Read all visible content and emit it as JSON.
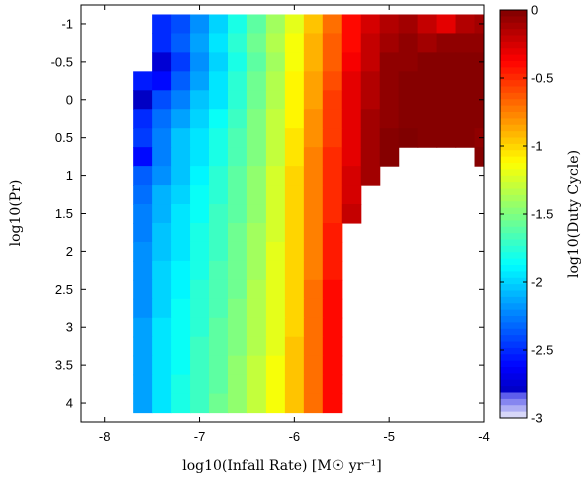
{
  "chart_data": {
    "type": "heatmap",
    "title": "",
    "xlabel": "log10(Infall Rate) [M☉ yr⁻¹]",
    "ylabel": "log10(Pr)",
    "colorbar_label": "log10(Duty Cycle)",
    "xlim": [
      -8.25,
      -4.0
    ],
    "ylim": [
      -1.25,
      4.25
    ],
    "y_inverted": true,
    "x_ticks": [
      "-8",
      "-7",
      "-6",
      "-5",
      "-4"
    ],
    "x_tick_values": [
      -8,
      -7,
      -6,
      -5,
      -4
    ],
    "y_ticks": [
      "-1",
      "-0.5",
      "0",
      "0.5",
      "1",
      "1.5",
      "2",
      "2.5",
      "3",
      "3.5",
      "4"
    ],
    "y_tick_values": [
      -1,
      -0.5,
      0,
      0.5,
      1,
      1.5,
      2,
      2.5,
      3,
      3.5,
      4
    ],
    "colorbar_ticks": [
      "0",
      "-0.5",
      "-1",
      "-1.5",
      "-2",
      "-2.5",
      "-3"
    ],
    "colorbar_tick_values": [
      0,
      -0.5,
      -1,
      -1.5,
      -2,
      -2.5,
      -3
    ],
    "color_range": [
      -3,
      0
    ],
    "colormap": "jet",
    "x_edges": [
      -7.7,
      -7.5,
      -7.3,
      -7.1,
      -6.9,
      -6.7,
      -6.5,
      -6.3,
      -6.1,
      -5.9,
      -5.7,
      -5.5,
      -5.3,
      -5.1,
      -4.9,
      -4.7,
      -4.5,
      -4.3,
      -4.1,
      -3.9
    ],
    "y_centers": [
      -1.0,
      -0.75,
      -0.5,
      -0.25,
      0.0,
      0.25,
      0.5,
      0.75,
      1.0,
      1.25,
      1.5,
      1.75,
      2.0,
      2.25,
      2.5,
      2.75,
      3.0,
      3.25,
      3.5,
      3.75,
      4.0
    ],
    "values": [
      [
        null,
        -2.5,
        -2.4,
        -2.2,
        -2.0,
        -1.8,
        -1.6,
        -1.4,
        -1.2,
        -0.95,
        -0.7,
        -0.4,
        -0.25,
        -0.15,
        -0.1,
        -0.2,
        -0.3,
        -0.15,
        -0.1
      ],
      [
        null,
        -2.5,
        -2.35,
        -2.15,
        -1.95,
        -1.75,
        -1.55,
        -1.35,
        -1.15,
        -0.9,
        -0.65,
        -0.4,
        -0.2,
        -0.1,
        -0.05,
        -0.1,
        -0.05,
        -0.05,
        -0.05
      ],
      [
        null,
        -2.75,
        -2.45,
        -2.2,
        -2.0,
        -1.8,
        -1.6,
        -1.4,
        -1.15,
        -0.9,
        -0.65,
        -0.35,
        -0.2,
        -0.05,
        -0.05,
        -0.02,
        -0.02,
        -0.02,
        -0.02
      ],
      [
        -2.55,
        -2.6,
        -2.35,
        -2.15,
        -1.95,
        -1.75,
        -1.55,
        -1.35,
        -1.1,
        -0.85,
        -0.6,
        -0.3,
        -0.15,
        -0.05,
        -0.02,
        -0.02,
        -0.02,
        -0.02,
        -0.02
      ],
      [
        -2.8,
        -2.4,
        -2.25,
        -2.05,
        -1.95,
        -1.75,
        -1.55,
        -1.35,
        -1.1,
        -0.85,
        -0.55,
        -0.3,
        -0.15,
        -0.05,
        -0.02,
        -0.02,
        -0.02,
        -0.02,
        -0.02
      ],
      [
        -2.5,
        -2.3,
        -2.15,
        -2.0,
        -1.85,
        -1.7,
        -1.5,
        -1.3,
        -1.1,
        -0.8,
        -0.55,
        -0.3,
        -0.1,
        -0.05,
        -0.02,
        -0.02,
        -0.02,
        -0.02,
        -0.02
      ],
      [
        -2.45,
        -2.25,
        -2.05,
        -1.95,
        -1.8,
        -1.65,
        -1.5,
        -1.3,
        -1.05,
        -0.8,
        -0.55,
        -0.3,
        -0.1,
        -0.02,
        0.0,
        -0.02,
        -0.02,
        -0.02,
        -0.05
      ],
      [
        -2.6,
        -2.25,
        -2.05,
        -1.95,
        -1.8,
        -1.65,
        -1.5,
        -1.3,
        -1.05,
        -0.75,
        -0.5,
        -0.3,
        -0.1,
        -0.02,
        null,
        null,
        null,
        null,
        -0.02
      ],
      [
        -2.35,
        -2.2,
        -2.05,
        -1.9,
        -1.75,
        -1.6,
        -1.45,
        -1.25,
        -1.0,
        -0.75,
        -0.5,
        -0.25,
        -0.1,
        null,
        null,
        null,
        null,
        null,
        null
      ],
      [
        -2.3,
        -2.1,
        -2.0,
        -1.85,
        -1.75,
        -1.6,
        -1.45,
        -1.25,
        -1.0,
        -0.75,
        -0.5,
        -0.25,
        null,
        null,
        null,
        null,
        null,
        null,
        null
      ],
      [
        -2.25,
        -2.1,
        -1.95,
        -1.85,
        -1.7,
        -1.6,
        -1.45,
        -1.25,
        -1.0,
        -0.75,
        -0.5,
        -0.2,
        null,
        null,
        null,
        null,
        null,
        null,
        null
      ],
      [
        -2.25,
        -2.05,
        -1.95,
        -1.8,
        -1.7,
        -1.55,
        -1.4,
        -1.25,
        -1.0,
        -0.75,
        -0.45,
        null,
        null,
        null,
        null,
        null,
        null,
        null,
        null
      ],
      [
        -2.2,
        -2.05,
        -1.95,
        -1.8,
        -1.7,
        -1.55,
        -1.4,
        -1.2,
        -1.0,
        -0.75,
        -0.45,
        null,
        null,
        null,
        null,
        null,
        null,
        null,
        null
      ],
      [
        -2.2,
        -2.0,
        -1.9,
        -1.8,
        -1.65,
        -1.55,
        -1.4,
        -1.2,
        -1.0,
        -0.75,
        -0.45,
        null,
        null,
        null,
        null,
        null,
        null,
        null,
        null
      ],
      [
        -2.2,
        -2.0,
        -1.9,
        -1.75,
        -1.65,
        -1.55,
        -1.35,
        -1.2,
        -1.0,
        -0.7,
        -0.4,
        null,
        null,
        null,
        null,
        null,
        null,
        null,
        null
      ],
      [
        -2.2,
        -2.0,
        -1.85,
        -1.75,
        -1.65,
        -1.5,
        -1.35,
        -1.2,
        -1.0,
        -0.7,
        -0.4,
        null,
        null,
        null,
        null,
        null,
        null,
        null,
        null
      ],
      [
        -2.15,
        -1.95,
        -1.85,
        -1.75,
        -1.6,
        -1.5,
        -1.35,
        -1.2,
        -1.0,
        -0.7,
        -0.4,
        null,
        null,
        null,
        null,
        null,
        null,
        null,
        null
      ],
      [
        -2.15,
        -1.95,
        -1.85,
        -1.7,
        -1.6,
        -1.5,
        -1.35,
        -1.2,
        -0.95,
        -0.7,
        -0.4,
        null,
        null,
        null,
        null,
        null,
        null,
        null,
        null
      ],
      [
        -2.15,
        -1.95,
        -1.85,
        -1.7,
        -1.6,
        -1.45,
        -1.3,
        -1.15,
        -0.95,
        -0.7,
        -0.4,
        null,
        null,
        null,
        null,
        null,
        null,
        null,
        null
      ],
      [
        -2.15,
        -1.95,
        -1.8,
        -1.7,
        -1.6,
        -1.45,
        -1.3,
        -1.15,
        -0.95,
        -0.7,
        -0.4,
        null,
        null,
        null,
        null,
        null,
        null,
        null,
        null
      ],
      [
        -2.15,
        -1.95,
        -1.8,
        -1.7,
        -1.55,
        -1.45,
        -1.3,
        -1.15,
        -0.95,
        -0.7,
        -0.4,
        null,
        null,
        null,
        null,
        null,
        null,
        null,
        null
      ]
    ],
    "grid": false,
    "legend": "colorbar-right"
  }
}
